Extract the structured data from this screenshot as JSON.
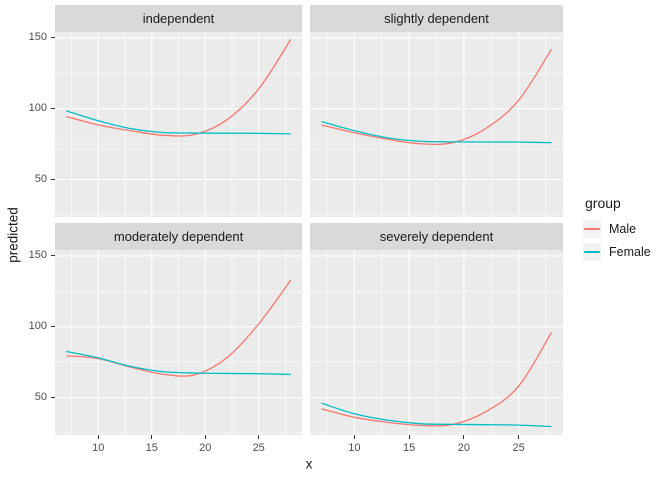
{
  "chart_data": {
    "type": "line",
    "title": "",
    "xlabel": "x",
    "ylabel": "predicted",
    "grid": true,
    "legend_position": "right",
    "x_domain": [
      5.95,
      29.05
    ],
    "y_domain": [
      23.5,
      154.2
    ],
    "x_ticks": [
      10,
      15,
      20,
      25
    ],
    "x_tick_labels": [
      "10",
      "15",
      "20",
      "25"
    ],
    "x_minor_ticks": [
      7.5,
      12.5,
      17.5,
      22.5,
      27.5
    ],
    "y_ticks": [
      50,
      100,
      150
    ],
    "y_tick_labels": [
      "50",
      "100",
      "150"
    ],
    "y_minor_ticks": [
      25,
      75,
      125
    ],
    "sample_x": [
      7,
      10,
      13,
      16,
      19,
      22,
      25,
      28
    ],
    "facets": [
      {
        "label": "independent",
        "series": [
          {
            "name": "Male",
            "values": [
              94.5,
              88.5,
              84.5,
              81.3,
              81.8,
              92,
              114,
              149
            ]
          },
          {
            "name": "Female",
            "values": [
              98.5,
              91.5,
              86,
              83.2,
              82.8,
              82.7,
              82.6,
              82.2
            ]
          }
        ]
      },
      {
        "label": "slightly dependent",
        "series": [
          {
            "name": "Male",
            "values": [
              88.5,
              83,
              78.5,
              75.3,
              76,
              86,
              106,
              142
            ]
          },
          {
            "name": "Female",
            "values": [
              91,
              84.5,
              79.5,
              77,
              76.6,
              76.5,
              76.4,
              76
            ]
          }
        ]
      },
      {
        "label": "moderately dependent",
        "series": [
          {
            "name": "Male",
            "values": [
              79.5,
              77.5,
              71.5,
              66.5,
              66,
              78,
              102,
              133
            ]
          },
          {
            "name": "Female",
            "values": [
              82.5,
              78,
              72,
              68.3,
              67.3,
              67,
              66.8,
              66.3
            ]
          }
        ]
      },
      {
        "label": "severely dependent",
        "series": [
          {
            "name": "Male",
            "values": [
              42,
              36,
              32.5,
              30.3,
              31,
              40,
              58,
              96
            ]
          },
          {
            "name": "Female",
            "values": [
              46,
              38.5,
              34,
              31.5,
              31,
              30.8,
              30.5,
              29.5
            ]
          }
        ]
      }
    ],
    "legend": {
      "title": "group",
      "entries": [
        {
          "label": "Male",
          "color": "#F8766D"
        },
        {
          "label": "Female",
          "color": "#00BFC4"
        }
      ]
    },
    "colors": {
      "male_line": "#F8766D",
      "female_line": "#00BFC4",
      "panel_bg": "#EBEBEB",
      "strip_bg": "#D9D9D9",
      "grid_line": "#FFFFFF",
      "axis_text": "#4D4D4D",
      "tick_mark": "#333333",
      "legend_key_bg": "#F2F2F2",
      "background": "#FFFFFF"
    }
  }
}
